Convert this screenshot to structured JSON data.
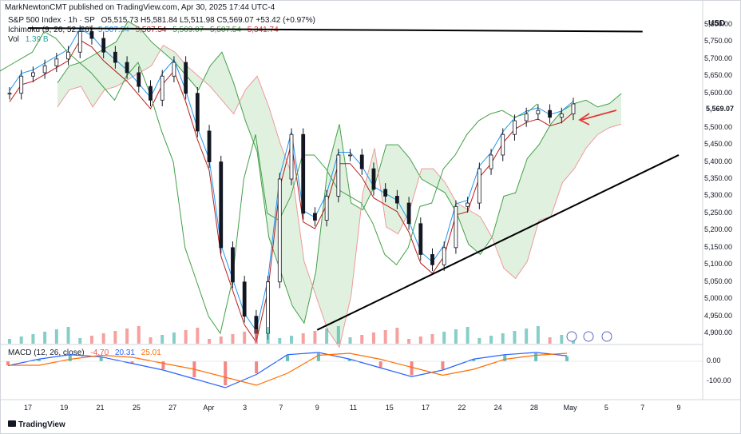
{
  "header": {
    "publisher": "MarkNewtonCMT published on TradingView.com, Apr 30, 2025 17:44 UTC-4"
  },
  "legend": {
    "symbol": "S&P 500 Index · 1h · SP",
    "ohlc": "O5,515.73  H5,581.84  L5,511.98  C5,569.07  +53.42 (+0.97%)",
    "ichimoku_label": "Ichimoku (9, 26, 52, 26)",
    "ichimoku_v1": "5,507.54",
    "ichimoku_v2": "5,507.54",
    "ichimoku_v3": "5,569.07",
    "ichimoku_v4": "5,507.54",
    "ichimoku_v5": "5,341.74",
    "vol_label": "Vol",
    "vol_value": "1.39 B",
    "macd_label": "MACD (12, 26, close)",
    "macd_v1": "-4.70",
    "macd_v2": "20.31",
    "macd_v3": "25.01"
  },
  "axis": {
    "currency": "USD",
    "last_price": "5,569.07",
    "price_ticks": [
      "5,800.00",
      "5,750.00",
      "5,700.00",
      "5,650.00",
      "5,600.00",
      "5,550.00",
      "5,500.00",
      "5,450.00",
      "5,400.00",
      "5,350.00",
      "5,300.00",
      "5,250.00",
      "5,200.00",
      "5,150.00",
      "5,100.00",
      "5,050.00",
      "5,000.00",
      "4,950.00",
      "4,900.00"
    ],
    "macd_ticks": [
      "0.00",
      "-100.00"
    ],
    "date_ticks": [
      "17",
      "19",
      "21",
      "25",
      "27",
      "Apr",
      "3",
      "7",
      "9",
      "11",
      "15",
      "17",
      "22",
      "24",
      "28",
      "May",
      "5",
      "7",
      "9"
    ]
  },
  "brand": "TradingView",
  "colors": {
    "up": "#26a69a",
    "down": "#ef5350",
    "conversion": "#2196f3",
    "base": "#b71c1c",
    "lagging": "#43a047",
    "cloud_up": "#a5d6a7",
    "cloud_down": "#ef9a9a",
    "macd": "#2962ff",
    "signal": "#ff6d00",
    "trendline": "#000000",
    "arrow": "#e53935"
  },
  "chart_data": {
    "type": "candlestick",
    "title": "S&P 500 Index · 1h · SP",
    "ylim": [
      4870,
      5830
    ],
    "x": [
      "Mar 17",
      "Mar 19",
      "Mar 21",
      "Mar 25",
      "Mar 27",
      "Apr 1",
      "Apr 3",
      "Apr 7",
      "Apr 9",
      "Apr 11",
      "Apr 15",
      "Apr 17",
      "Apr 22",
      "Apr 24",
      "Apr 28",
      "May 1",
      "May 5",
      "May 7",
      "May 9"
    ],
    "close_path": [
      5600,
      5650,
      5660,
      5680,
      5700,
      5720,
      5780,
      5760,
      5720,
      5690,
      5660,
      5620,
      5580,
      5650,
      5690,
      5600,
      5490,
      5400,
      5150,
      5050,
      4950,
      4900,
      5050,
      5350,
      5480,
      5250,
      5230,
      5300,
      5420,
      5420,
      5380,
      5320,
      5300,
      5280,
      5220,
      5130,
      5100,
      5150,
      5270,
      5280,
      5380,
      5420,
      5480,
      5520,
      5540,
      5550,
      5530,
      5540,
      5569
    ],
    "volume_spikes": [
      {
        "date": "Mar 21",
        "volume_b": "high"
      },
      {
        "date": "Apr 9",
        "volume_b": "high"
      }
    ],
    "trendlines": [
      {
        "name": "resistance",
        "from": {
          "date": "Mar 17",
          "price": 5790
        },
        "to": {
          "date": "May 7",
          "price": 5780
        }
      },
      {
        "name": "support",
        "from": {
          "date": "Apr 9",
          "price": 4910
        },
        "to": {
          "date": "May 9",
          "price": 5420
        }
      }
    ],
    "macd": {
      "values": [
        -20,
        10,
        30,
        20,
        -10,
        -40,
        -80,
        -120,
        -60,
        30,
        40,
        10,
        -30,
        -70,
        -40,
        10,
        30,
        40,
        25
      ]
    }
  }
}
